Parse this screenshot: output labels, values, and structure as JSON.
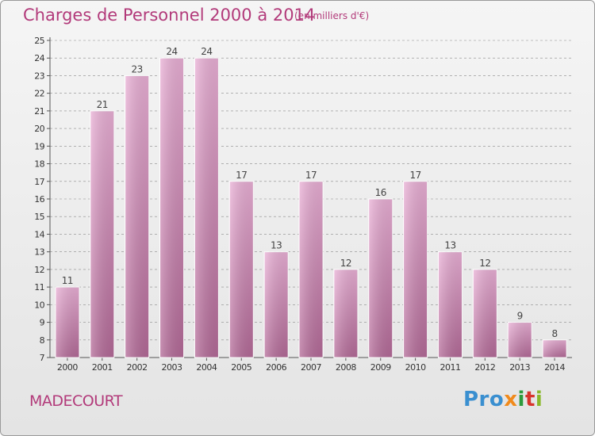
{
  "header": {
    "title": "Charges de Personnel 2000 à 2014",
    "subtitle": "(en milliers d'€)"
  },
  "footer": {
    "commune": "MADECOURT",
    "logo_parts": [
      "Pro",
      "x",
      "i",
      "t",
      "i"
    ]
  },
  "colors": {
    "title": "#b23a7a",
    "bar_light": "#eab0d6",
    "bar_dark": "#b46a98",
    "grid": "#8a8a8a"
  },
  "chart_data": {
    "type": "bar",
    "title": "Charges de Personnel 2000 à 2014",
    "subtitle": "(en milliers d'€)",
    "categories": [
      "2000",
      "2001",
      "2002",
      "2003",
      "2004",
      "2005",
      "2006",
      "2007",
      "2008",
      "2009",
      "2010",
      "2011",
      "2012",
      "2013",
      "2014"
    ],
    "values": [
      11,
      21,
      23,
      24,
      24,
      17,
      13,
      17,
      12,
      16,
      17,
      13,
      12,
      9,
      8
    ],
    "ylim": [
      7,
      25
    ],
    "yticks": [
      7,
      8,
      9,
      10,
      11,
      12,
      13,
      14,
      15,
      16,
      17,
      18,
      19,
      20,
      21,
      22,
      23,
      24,
      25
    ],
    "grid": "horizontal dashed",
    "legend": "none"
  }
}
